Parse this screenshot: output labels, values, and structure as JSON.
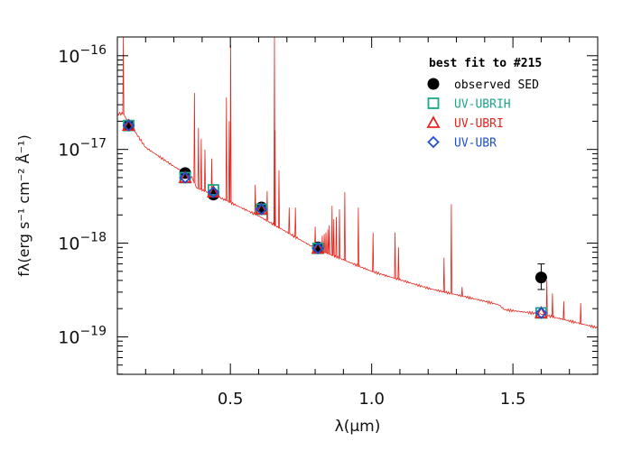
{
  "chart_data": {
    "type": "scatter",
    "title": "best fit to #215",
    "xlabel": "λ(μm)",
    "ylabel": "fλ(erg s⁻¹ cm⁻² Å⁻¹)",
    "xlim": [
      0.1,
      1.8
    ],
    "ylim_log10": [
      -19.4,
      -15.8
    ],
    "yscale": "log",
    "grid": false,
    "legend_position": "top-right",
    "x_ticks": [
      {
        "value": 0.5,
        "label": "0.5"
      },
      {
        "value": 1.0,
        "label": "1.0"
      },
      {
        "value": 1.5,
        "label": "1.5"
      }
    ],
    "y_ticks": [
      {
        "value": -16,
        "base": "10",
        "exp": "−16"
      },
      {
        "value": -17,
        "base": "10",
        "exp": "−17"
      },
      {
        "value": -18,
        "base": "10",
        "exp": "−18"
      },
      {
        "value": -19,
        "base": "10",
        "exp": "−19"
      }
    ],
    "observed": {
      "name": "observed SED",
      "color": "#000000",
      "points": [
        {
          "x": 0.14,
          "y": 1.8e-17
        },
        {
          "x": 0.34,
          "y": 5.6e-18
        },
        {
          "x": 0.44,
          "y": 3.3e-18
        },
        {
          "x": 0.61,
          "y": 2.4e-18
        },
        {
          "x": 0.81,
          "y": 9e-19
        },
        {
          "x": 1.6,
          "y": 4.3e-19,
          "err_lo": 3.2e-19,
          "err_hi": 6e-19
        }
      ]
    },
    "series": [
      {
        "name": "UV-UBRIH",
        "marker": "square",
        "color": "#1aa68a",
        "points": [
          {
            "x": 0.14,
            "y": 1.8e-17
          },
          {
            "x": 0.34,
            "y": 5e-18
          },
          {
            "x": 0.44,
            "y": 3.7e-18
          },
          {
            "x": 0.61,
            "y": 2.3e-18
          },
          {
            "x": 0.81,
            "y": 8.8e-19
          },
          {
            "x": 1.6,
            "y": 1.8e-19
          }
        ]
      },
      {
        "name": "UV-UBRI",
        "marker": "triangle",
        "color": "#e8231b",
        "points": [
          {
            "x": 0.14,
            "y": 1.8e-17
          },
          {
            "x": 0.34,
            "y": 5e-18
          },
          {
            "x": 0.44,
            "y": 3.5e-18
          },
          {
            "x": 0.61,
            "y": 2.3e-18
          },
          {
            "x": 0.81,
            "y": 8.8e-19
          },
          {
            "x": 1.6,
            "y": 1.8e-19
          }
        ]
      },
      {
        "name": "UV-UBR",
        "marker": "diamond",
        "color": "#1f4fd1",
        "points": [
          {
            "x": 0.14,
            "y": 1.8e-17
          },
          {
            "x": 0.34,
            "y": 5e-18
          },
          {
            "x": 0.44,
            "y": 3.5e-18
          },
          {
            "x": 0.61,
            "y": 2.3e-18
          },
          {
            "x": 0.81,
            "y": 8.8e-19
          },
          {
            "x": 1.6,
            "y": 1.8e-19
          }
        ]
      }
    ],
    "model_spectrum": {
      "color": "#e8231b",
      "continuum": [
        {
          "x": 0.12,
          "y": 2.4e-17
        },
        {
          "x": 0.2,
          "y": 1.05e-17
        },
        {
          "x": 0.3,
          "y": 6.6e-18
        },
        {
          "x": 0.365,
          "y": 5e-18
        },
        {
          "x": 0.38,
          "y": 3.9e-18
        },
        {
          "x": 0.45,
          "y": 3.2e-18
        },
        {
          "x": 0.6,
          "y": 1.95e-18
        },
        {
          "x": 0.8,
          "y": 8.8e-19
        },
        {
          "x": 1.0,
          "y": 5e-19
        },
        {
          "x": 1.2,
          "y": 3.3e-19
        },
        {
          "x": 1.4,
          "y": 2.4e-19
        },
        {
          "x": 1.45,
          "y": 2.2e-19
        },
        {
          "x": 1.47,
          "y": 1.95e-19
        },
        {
          "x": 1.6,
          "y": 1.75e-19
        },
        {
          "x": 1.8,
          "y": 1.25e-19
        }
      ],
      "lines": [
        {
          "x": 0.121,
          "peak": 5e-16
        },
        {
          "x": 0.373,
          "peak": 4e-17
        },
        {
          "x": 0.387,
          "peak": 1.7e-17
        },
        {
          "x": 0.397,
          "peak": 1.3e-17
        },
        {
          "x": 0.41,
          "peak": 1e-17
        },
        {
          "x": 0.434,
          "peak": 8e-18
        },
        {
          "x": 0.486,
          "peak": 3.6e-17
        },
        {
          "x": 0.496,
          "peak": 2e-17
        },
        {
          "x": 0.501,
          "peak": 1.3e-16
        },
        {
          "x": 0.588,
          "peak": 4.2e-18
        },
        {
          "x": 0.63,
          "peak": 3.6e-18
        },
        {
          "x": 0.656,
          "peak": 3.2e-16
        },
        {
          "x": 0.658,
          "peak": 1.6e-17
        },
        {
          "x": 0.672,
          "peak": 6e-18
        },
        {
          "x": 0.708,
          "peak": 2.4e-18
        },
        {
          "x": 0.73,
          "peak": 2.4e-18
        },
        {
          "x": 0.8,
          "peak": 1.5e-18
        },
        {
          "x": 0.86,
          "peak": 2.5e-18
        },
        {
          "x": 0.905,
          "peak": 3.5e-18
        },
        {
          "x": 0.953,
          "peak": 2.4e-18
        },
        {
          "x": 1.005,
          "peak": 1.3e-18
        },
        {
          "x": 1.083,
          "peak": 1.3e-18
        },
        {
          "x": 1.095,
          "peak": 9e-19
        },
        {
          "x": 1.256,
          "peak": 7e-19
        },
        {
          "x": 1.282,
          "peak": 2.6e-18
        },
        {
          "x": 1.32,
          "peak": 3.4e-19
        },
        {
          "x": 1.62,
          "peak": 4e-19
        },
        {
          "x": 1.64,
          "peak": 2.9e-19
        },
        {
          "x": 1.68,
          "peak": 2.4e-19
        },
        {
          "x": 1.74,
          "peak": 2.3e-19
        }
      ],
      "paschen_cluster": [
        {
          "x": 0.825,
          "peak": 1.2e-18
        },
        {
          "x": 0.832,
          "peak": 1.25e-18
        },
        {
          "x": 0.838,
          "peak": 1.3e-18
        },
        {
          "x": 0.845,
          "peak": 1.4e-18
        },
        {
          "x": 0.85,
          "peak": 1.55e-18
        },
        {
          "x": 0.866,
          "peak": 1.8e-18
        },
        {
          "x": 0.875,
          "peak": 1.9e-18
        },
        {
          "x": 0.886,
          "peak": 2.3e-18
        }
      ]
    }
  }
}
